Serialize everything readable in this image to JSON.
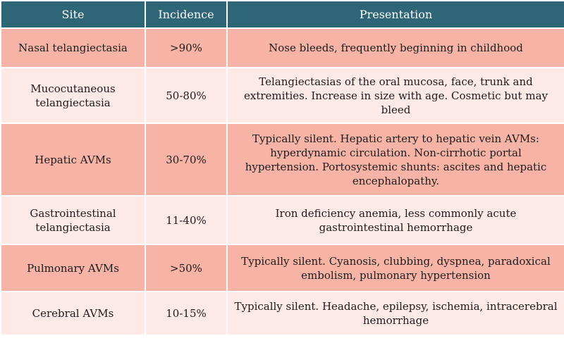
{
  "colors": {
    "header": "#2f6677",
    "row_dark": "#f7b3a5",
    "row_light": "#fdeae7"
  },
  "header": {
    "site": "Site",
    "incidence": "Incidence",
    "presentation": "Presentation"
  },
  "rows": [
    {
      "site": "Nasal telangiectasia",
      "incidence": ">90%",
      "presentation": "Nose bleeds, frequently beginning in childhood"
    },
    {
      "site": "Mucocutaneous telangiectasia",
      "incidence": "50-80%",
      "presentation": "Telangiectasias of the oral mucosa, face, trunk and extremities. Increase in size with age. Cosmetic but may bleed"
    },
    {
      "site": "Hepatic AVMs",
      "incidence": "30-70%",
      "presentation": "Typically silent. Hepatic artery to hepatic vein AVMs: hyperdynamic circulation. Non-cirrhotic portal hypertension. Portosystemic shunts: ascites and hepatic encephalopathy."
    },
    {
      "site": "Gastrointestinal telangiectasia",
      "incidence": "11-40%",
      "presentation": "Iron deficiency anemia, less commonly acute gastrointestinal hemorrhage"
    },
    {
      "site": "Pulmonary AVMs",
      "incidence": ">50%",
      "presentation": "Typically silent. Cyanosis, clubbing, dyspnea, paradoxical embolism, pulmonary hypertension"
    },
    {
      "site": "Cerebral AVMs",
      "incidence": "10-15%",
      "presentation": "Typically silent. Headache, epilepsy, ischemia, intracerebral hemorrhage"
    }
  ]
}
